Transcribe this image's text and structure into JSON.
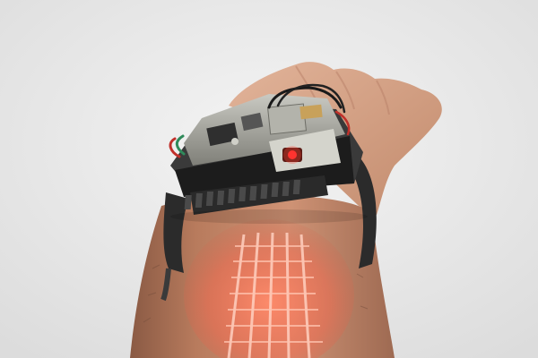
{
  "scene": {
    "subject": "wrist-worn-projector-prototype",
    "colors": {
      "background": "#ececec",
      "skin": "#c98d6f",
      "skin_shadow": "#9e6a52",
      "strap": "#2b2b2b",
      "board": "#9a9a92",
      "projection": "#ff6a55",
      "led": "#ff2a2a",
      "wire_red": "#c0302a",
      "wire_green": "#2f8a5a"
    }
  }
}
